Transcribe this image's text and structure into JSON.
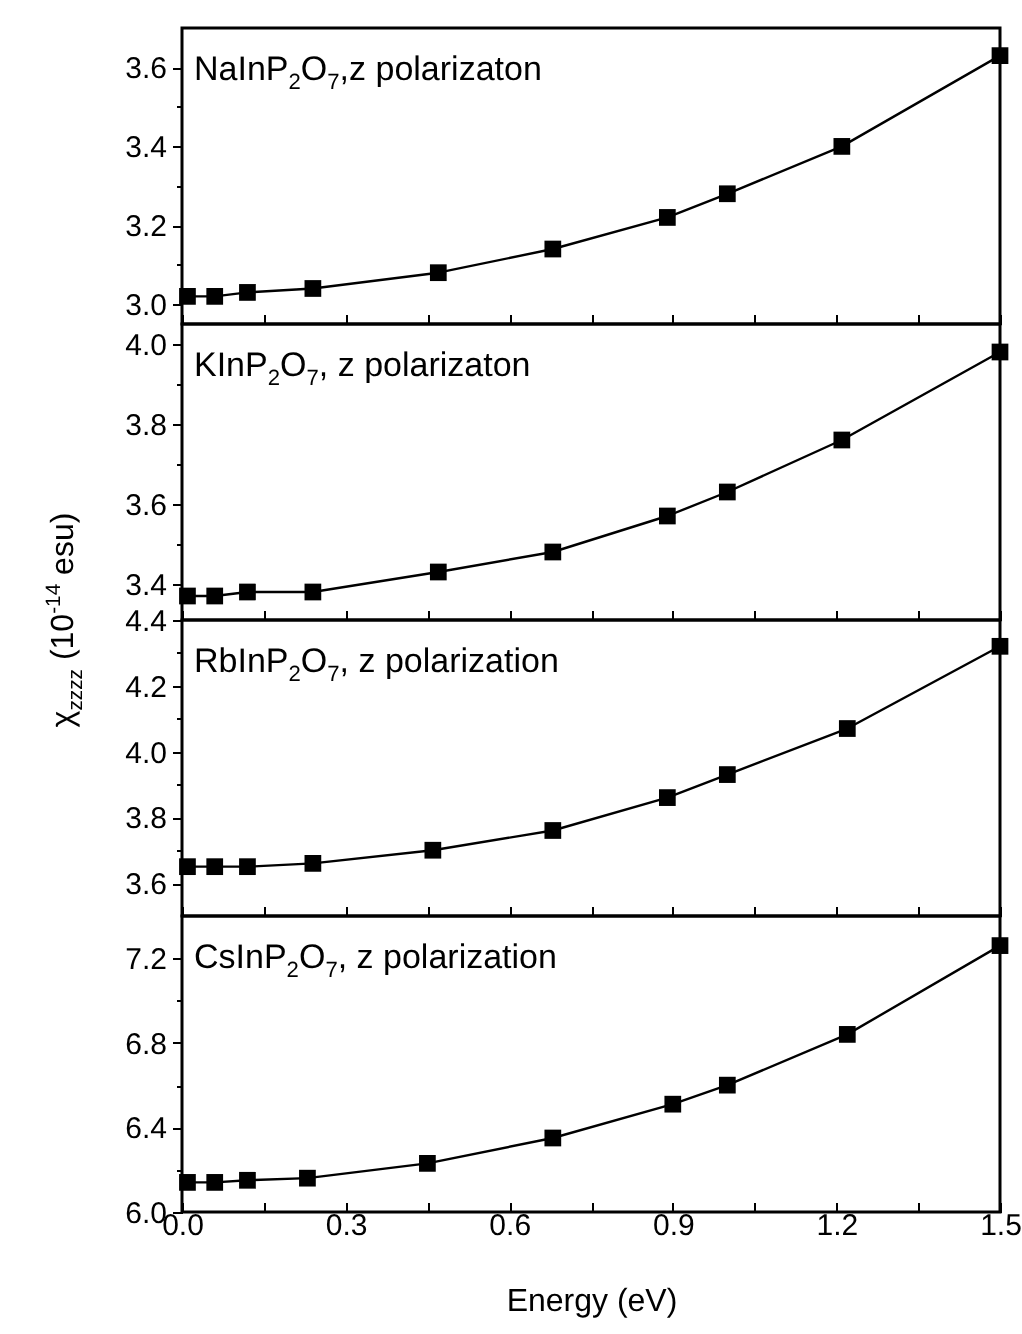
{
  "chart_data": [
    {
      "type": "line",
      "title": "NaInP$_{2}$O$_{7}$,z polarizaton",
      "x": [
        0.01,
        0.06,
        0.12,
        0.24,
        0.47,
        0.68,
        0.89,
        1.0,
        1.21,
        1.5
      ],
      "series": [
        {
          "color": "#000000",
          "values": [
            3.02,
            3.02,
            3.03,
            3.04,
            3.08,
            3.14,
            3.22,
            3.28,
            3.4,
            3.63
          ]
        }
      ],
      "xlim": [
        0,
        1.5
      ],
      "xticks": [
        {
          "value": 0,
          "label": null
        },
        {
          "value": 0.15,
          "label": null
        },
        {
          "value": 0.3,
          "label": null
        },
        {
          "value": 0.45,
          "label": null
        },
        {
          "value": 0.6,
          "label": null
        },
        {
          "value": 0.75,
          "label": null
        },
        {
          "value": 0.9,
          "label": null
        },
        {
          "value": 1.05,
          "label": null
        },
        {
          "value": 1.2,
          "label": null
        },
        {
          "value": 1.35,
          "label": null
        },
        {
          "value": 1.5,
          "label": null
        }
      ],
      "ylim": [
        2.95,
        3.7
      ],
      "yticks": [
        {
          "value": 3.0,
          "label": "3.0"
        },
        {
          "value": 3.1,
          "label": null
        },
        3.2,
        {
          "value": 3.3,
          "label": null
        },
        3.4,
        {
          "value": 3.5,
          "label": null
        },
        3.6
      ],
      "marker": "square",
      "grid": false,
      "tick_labels": "y"
    },
    {
      "type": "line",
      "title": "KInP$_{2}$O$_{7}$, z polarizaton",
      "ylabel": "χ$_{zzzz}$ (10$^{-14}$ esu)",
      "x": [
        0.01,
        0.06,
        0.12,
        0.24,
        0.47,
        0.68,
        0.89,
        1.0,
        1.21,
        1.5
      ],
      "series": [
        {
          "color": "#000000",
          "values": [
            3.37,
            3.37,
            3.38,
            3.38,
            3.43,
            3.48,
            3.57,
            3.63,
            3.76,
            3.98
          ]
        }
      ],
      "xlim": [
        0,
        1.5
      ],
      "xticks": [
        {
          "value": 0,
          "label": null
        },
        {
          "value": 0.15,
          "label": null
        },
        {
          "value": 0.3,
          "label": null
        },
        {
          "value": 0.45,
          "label": null
        },
        {
          "value": 0.6,
          "label": null
        },
        {
          "value": 0.75,
          "label": null
        },
        {
          "value": 0.9,
          "label": null
        },
        {
          "value": 1.05,
          "label": null
        },
        {
          "value": 1.2,
          "label": null
        },
        {
          "value": 1.35,
          "label": null
        },
        {
          "value": 1.5,
          "label": null
        }
      ],
      "ylim": [
        3.31,
        4.05
      ],
      "yticks": [
        3.4,
        {
          "value": 3.5,
          "label": null
        },
        3.6,
        {
          "value": 3.7,
          "label": null
        },
        3.8,
        {
          "value": 3.9,
          "label": null
        },
        {
          "value": 4.0,
          "label": "4.0"
        }
      ],
      "marker": "square",
      "grid": false,
      "tick_labels": "y"
    },
    {
      "type": "line",
      "title": "RbInP$_{2}$O$_{7}$, z polarization",
      "x": [
        0.01,
        0.06,
        0.12,
        0.24,
        0.46,
        0.68,
        0.89,
        1.0,
        1.22,
        1.5
      ],
      "series": [
        {
          "color": "#000000",
          "values": [
            3.65,
            3.65,
            3.65,
            3.66,
            3.7,
            3.76,
            3.86,
            3.93,
            4.07,
            4.32
          ]
        }
      ],
      "xlim": [
        0,
        1.5
      ],
      "xticks": [
        {
          "value": 0,
          "label": null
        },
        {
          "value": 0.15,
          "label": null
        },
        {
          "value": 0.3,
          "label": null
        },
        {
          "value": 0.45,
          "label": null
        },
        {
          "value": 0.6,
          "label": null
        },
        {
          "value": 0.75,
          "label": null
        },
        {
          "value": 0.9,
          "label": null
        },
        {
          "value": 1.05,
          "label": null
        },
        {
          "value": 1.2,
          "label": null
        },
        {
          "value": 1.35,
          "label": null
        },
        {
          "value": 1.5,
          "label": null
        }
      ],
      "ylim": [
        3.5,
        4.4
      ],
      "yticks": [
        3.6,
        {
          "value": 3.7,
          "label": null
        },
        3.8,
        {
          "value": 3.9,
          "label": null
        },
        {
          "value": 4.0,
          "label": "4.0"
        },
        {
          "value": 4.1,
          "label": null
        },
        4.2,
        {
          "value": 4.3,
          "label": null
        },
        4.4
      ],
      "marker": "square",
      "grid": false,
      "tick_labels": "y"
    },
    {
      "type": "line",
      "title": "CsInP$_{2}$O$_{7}$, z polarization",
      "xlabel": "Energy (eV)",
      "x": [
        0.01,
        0.06,
        0.12,
        0.23,
        0.45,
        0.68,
        0.9,
        1.0,
        1.22,
        1.5
      ],
      "series": [
        {
          "color": "#000000",
          "values": [
            6.14,
            6.14,
            6.15,
            6.16,
            6.23,
            6.35,
            6.51,
            6.6,
            6.84,
            7.26
          ]
        }
      ],
      "xlim": [
        0,
        1.5
      ],
      "xticks": [
        {
          "value": 0,
          "label": "0.0"
        },
        {
          "value": 0.15,
          "label": null
        },
        0.3,
        {
          "value": 0.45,
          "label": null
        },
        0.6,
        {
          "value": 0.75,
          "label": null
        },
        0.9,
        {
          "value": 1.05,
          "label": null
        },
        1.2,
        {
          "value": 1.35,
          "label": null
        },
        1.5
      ],
      "ylim": [
        6.0,
        7.4
      ],
      "yticks": [
        {
          "value": 6.0,
          "label": "6.0"
        },
        {
          "value": 6.2,
          "label": null
        },
        6.4,
        {
          "value": 6.6,
          "label": null
        },
        6.8,
        {
          "value": 7.0,
          "label": null
        },
        7.2
      ],
      "marker": "square",
      "grid": false
    }
  ]
}
